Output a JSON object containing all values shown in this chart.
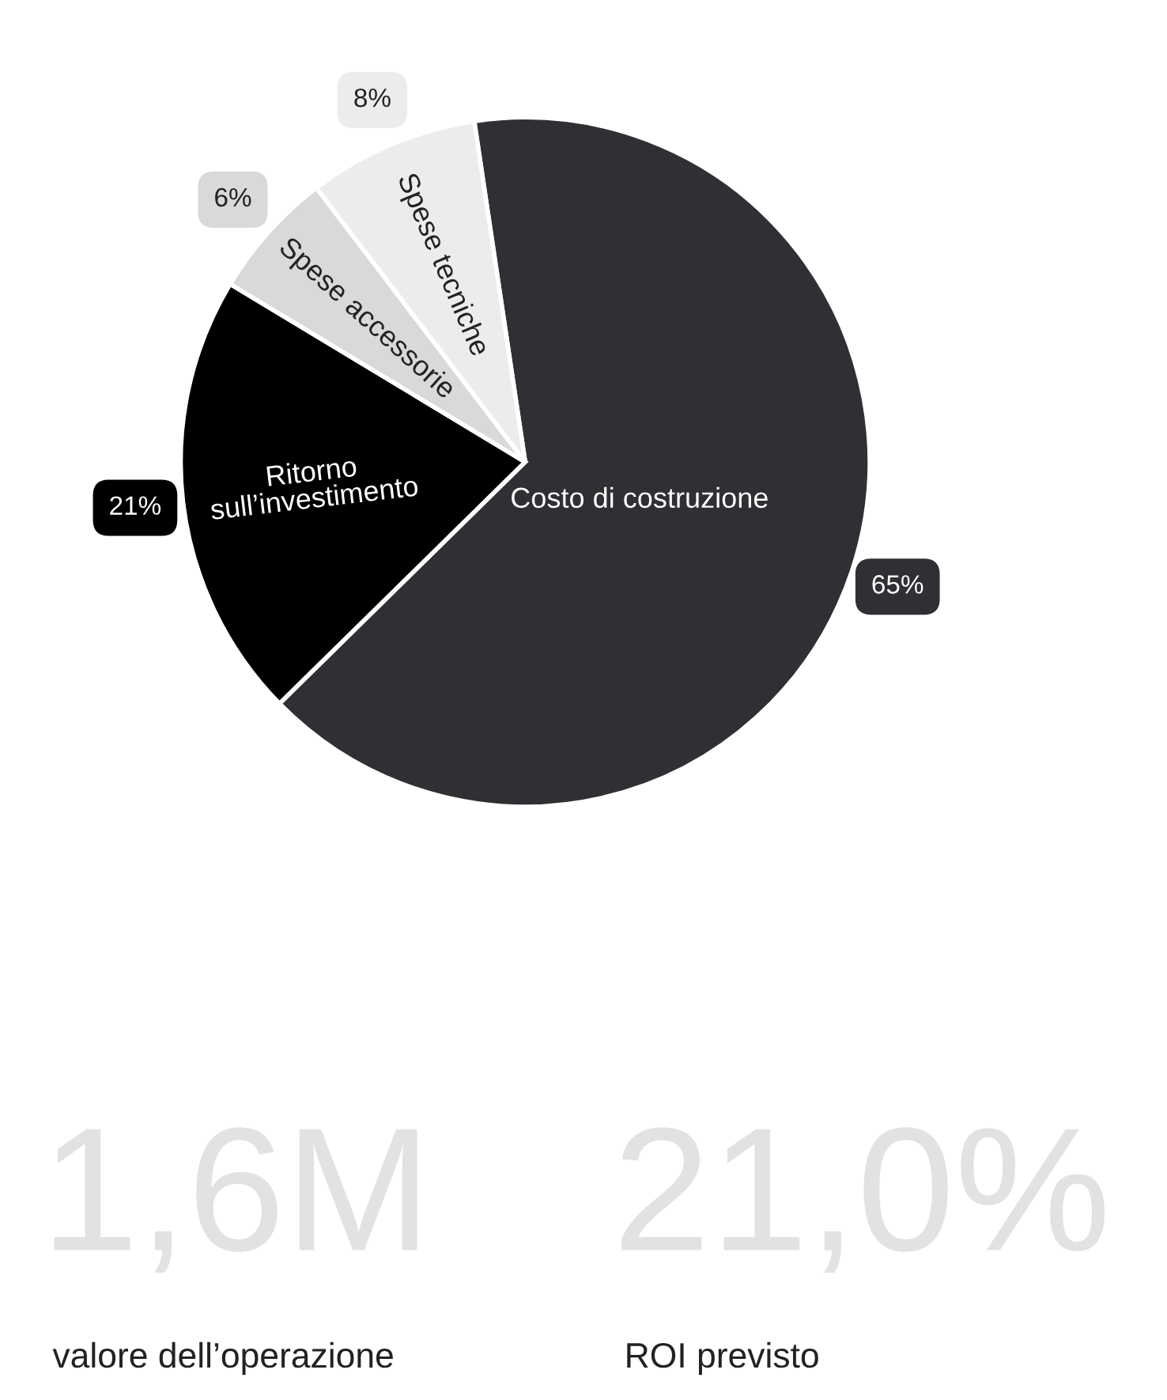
{
  "chart_data": [
    {
      "type": "pie",
      "categories": [
        "Costo di costruzione",
        "Ritorno\nsull’investimento",
        "Spese accessorie",
        "Spese tecniche"
      ],
      "values": [
        65,
        21,
        6,
        8
      ],
      "colors": [
        "#2f3033",
        "#000000",
        "#d9d9d9",
        "#ececec"
      ],
      "value_labels": [
        "65%",
        "21%",
        "6%",
        "8%"
      ]
    },
    {
      "type": "other",
      "annotations": [
        "1,6M",
        "valore dell’operazione",
        "21,0%",
        "ROI previsto"
      ]
    }
  ]
}
